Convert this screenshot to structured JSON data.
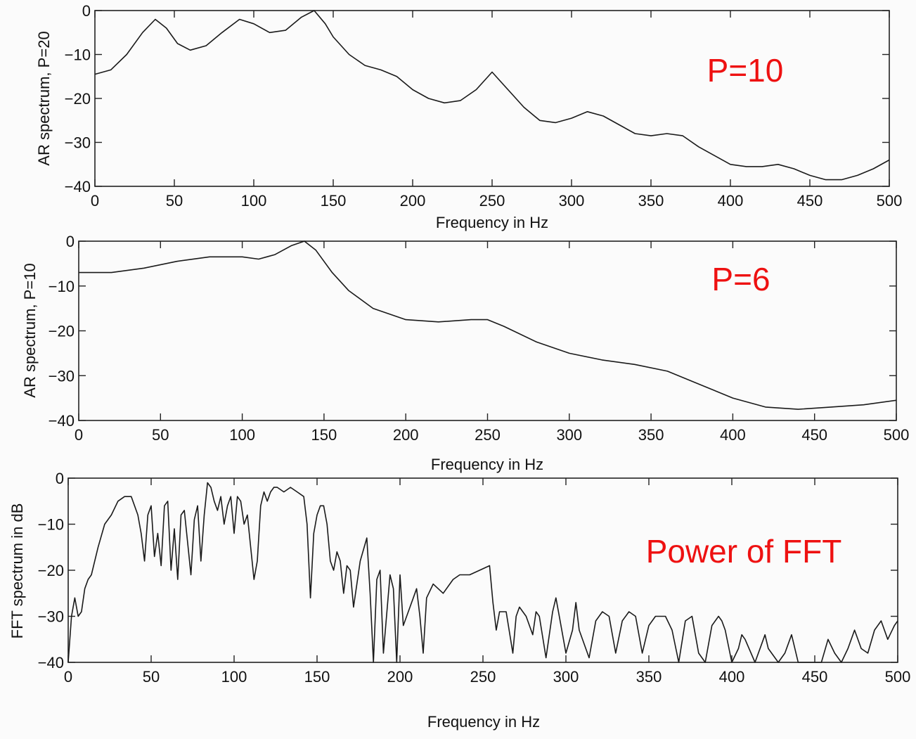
{
  "chart_data": [
    {
      "type": "line",
      "title": "",
      "xlabel": "Frequency in Hz",
      "ylabel": "AR spectrum, P=20",
      "annotation": "P=10",
      "xlim": [
        0,
        500
      ],
      "ylim": [
        -40,
        0
      ],
      "xticks": [
        0,
        50,
        100,
        150,
        200,
        250,
        300,
        350,
        400,
        450,
        500
      ],
      "yticks": [
        0,
        -10,
        -20,
        -30,
        -40
      ],
      "grid": false,
      "series": [
        {
          "x": [
            0,
            10,
            20,
            30,
            38,
            45,
            52,
            60,
            70,
            80,
            91,
            100,
            110,
            120,
            130,
            138,
            145,
            150,
            160,
            170,
            180,
            190,
            200,
            210,
            220,
            230,
            240,
            250,
            260,
            270,
            280,
            290,
            300,
            310,
            320,
            330,
            340,
            350,
            360,
            370,
            380,
            390,
            400,
            410,
            420,
            430,
            440,
            450,
            460,
            470,
            480,
            490,
            500
          ],
          "y": [
            -14.5,
            -13.5,
            -10,
            -5,
            -2,
            -4,
            -7.5,
            -9,
            -8,
            -5,
            -2,
            -3,
            -5,
            -4.5,
            -1.5,
            0,
            -3,
            -6,
            -10,
            -12.5,
            -13.5,
            -15,
            -18,
            -20,
            -21,
            -20.5,
            -18,
            -14,
            -18,
            -22,
            -25,
            -25.5,
            -24.5,
            -23,
            -24,
            -26,
            -28,
            -28.5,
            -28,
            -28.5,
            -31,
            -33,
            -35,
            -35.5,
            -35.5,
            -35,
            -36,
            -37.5,
            -38.5,
            -38.5,
            -37.5,
            -36,
            -34
          ]
        }
      ]
    },
    {
      "type": "line",
      "title": "",
      "xlabel": "Frequency in Hz",
      "ylabel": "AR spectrum, P=10",
      "annotation": "P=6",
      "xlim": [
        0,
        500
      ],
      "ylim": [
        -40,
        0
      ],
      "xticks": [
        0,
        50,
        100,
        150,
        200,
        250,
        300,
        350,
        400,
        450,
        500
      ],
      "yticks": [
        0,
        -10,
        -20,
        -30,
        -40
      ],
      "grid": false,
      "series": [
        {
          "x": [
            0,
            20,
            40,
            60,
            80,
            100,
            110,
            120,
            130,
            138,
            145,
            155,
            165,
            180,
            200,
            220,
            240,
            250,
            260,
            280,
            300,
            320,
            340,
            360,
            380,
            400,
            420,
            440,
            460,
            480,
            500
          ],
          "y": [
            -7,
            -7,
            -6,
            -4.5,
            -3.5,
            -3.5,
            -4,
            -3,
            -1,
            0,
            -2,
            -7,
            -11,
            -15,
            -17.5,
            -18,
            -17.5,
            -17.5,
            -19,
            -22.5,
            -25,
            -26.5,
            -27.5,
            -29,
            -32,
            -35,
            -37,
            -37.5,
            -37,
            -36.5,
            -35.5
          ]
        }
      ]
    },
    {
      "type": "line",
      "title": "",
      "xlabel": "Frequency in Hz",
      "ylabel": "FFT spectrum in dB",
      "annotation": "Power of FFT",
      "xlim": [
        0,
        500
      ],
      "ylim": [
        -40,
        0
      ],
      "xticks": [
        0,
        50,
        100,
        150,
        200,
        250,
        300,
        350,
        400,
        450,
        500
      ],
      "yticks": [
        0,
        -10,
        -20,
        -30,
        -40
      ],
      "grid": false,
      "series": [
        {
          "x": [
            0,
            2,
            4,
            6,
            8,
            10,
            12,
            14,
            18,
            22,
            26,
            30,
            34,
            38,
            42,
            44,
            46,
            48,
            50,
            52,
            54,
            56,
            58,
            60,
            62,
            64,
            66,
            68,
            70,
            72,
            74,
            76,
            78,
            80,
            82,
            84,
            86,
            88,
            90,
            92,
            94,
            96,
            98,
            100,
            102,
            104,
            106,
            108,
            110,
            112,
            114,
            116,
            118,
            120,
            122,
            124,
            126,
            130,
            134,
            138,
            142,
            144,
            146,
            148,
            150,
            152,
            154,
            156,
            158,
            160,
            162,
            164,
            166,
            168,
            170,
            172,
            176,
            180,
            182,
            184,
            186,
            188,
            190,
            194,
            196,
            198,
            200,
            202,
            206,
            208,
            210,
            212,
            214,
            216,
            220,
            226,
            232,
            236,
            242,
            248,
            254,
            256,
            258,
            260,
            264,
            268,
            270,
            272,
            276,
            280,
            282,
            284,
            288,
            292,
            294,
            296,
            300,
            304,
            306,
            308,
            314,
            318,
            322,
            326,
            330,
            334,
            338,
            342,
            346,
            350,
            354,
            360,
            364,
            368,
            372,
            376,
            380,
            384,
            388,
            392,
            394,
            396,
            400,
            404,
            406,
            408,
            414,
            418,
            420,
            422,
            428,
            432,
            436,
            440,
            446,
            450,
            452,
            454,
            458,
            462,
            466,
            470,
            474,
            478,
            482,
            486,
            490,
            494,
            498,
            500
          ],
          "y": [
            -40,
            -30,
            -26,
            -30,
            -29,
            -24,
            -22,
            -21,
            -15,
            -10,
            -8,
            -5,
            -4,
            -4,
            -8,
            -12,
            -18,
            -8,
            -6,
            -17,
            -12,
            -19,
            -6,
            -5,
            -20,
            -11,
            -22,
            -8,
            -7,
            -14,
            -21,
            -9,
            -6,
            -18,
            -8,
            -1,
            -2,
            -5,
            -7,
            -4,
            -10,
            -6,
            -4,
            -12,
            -4,
            -5,
            -10,
            -8,
            -15,
            -22,
            -18,
            -6,
            -3,
            -5,
            -3,
            -2,
            -2,
            -3,
            -2,
            -3,
            -4,
            -10,
            -26,
            -12,
            -8,
            -6,
            -6,
            -10,
            -18,
            -20,
            -16,
            -18,
            -25,
            -19,
            -20,
            -28,
            -18,
            -13,
            -25,
            -40,
            -22,
            -20,
            -38,
            -21,
            -24,
            -40,
            -21,
            -32,
            -28,
            -26,
            -24,
            -30,
            -38,
            -26,
            -23,
            -25,
            -22,
            -21,
            -21,
            -20,
            -19,
            -27,
            -33,
            -29,
            -29,
            -38,
            -30,
            -28,
            -30,
            -34,
            -29,
            -30,
            -39,
            -29,
            -26,
            -30,
            -38,
            -33,
            -27,
            -33,
            -39,
            -31,
            -29,
            -30,
            -38,
            -31,
            -29,
            -30,
            -38,
            -32,
            -30,
            -30,
            -33,
            -40,
            -31,
            -30,
            -38,
            -40,
            -32,
            -30,
            -31,
            -33,
            -40,
            -37,
            -34,
            -35,
            -40,
            -36,
            -34,
            -37,
            -40,
            -38,
            -34,
            -40,
            -40,
            -40,
            -40,
            -40,
            -35,
            -38,
            -40,
            -37,
            -33,
            -37,
            -38,
            -33,
            -31,
            -35,
            -32,
            -31
          ]
        }
      ]
    }
  ]
}
